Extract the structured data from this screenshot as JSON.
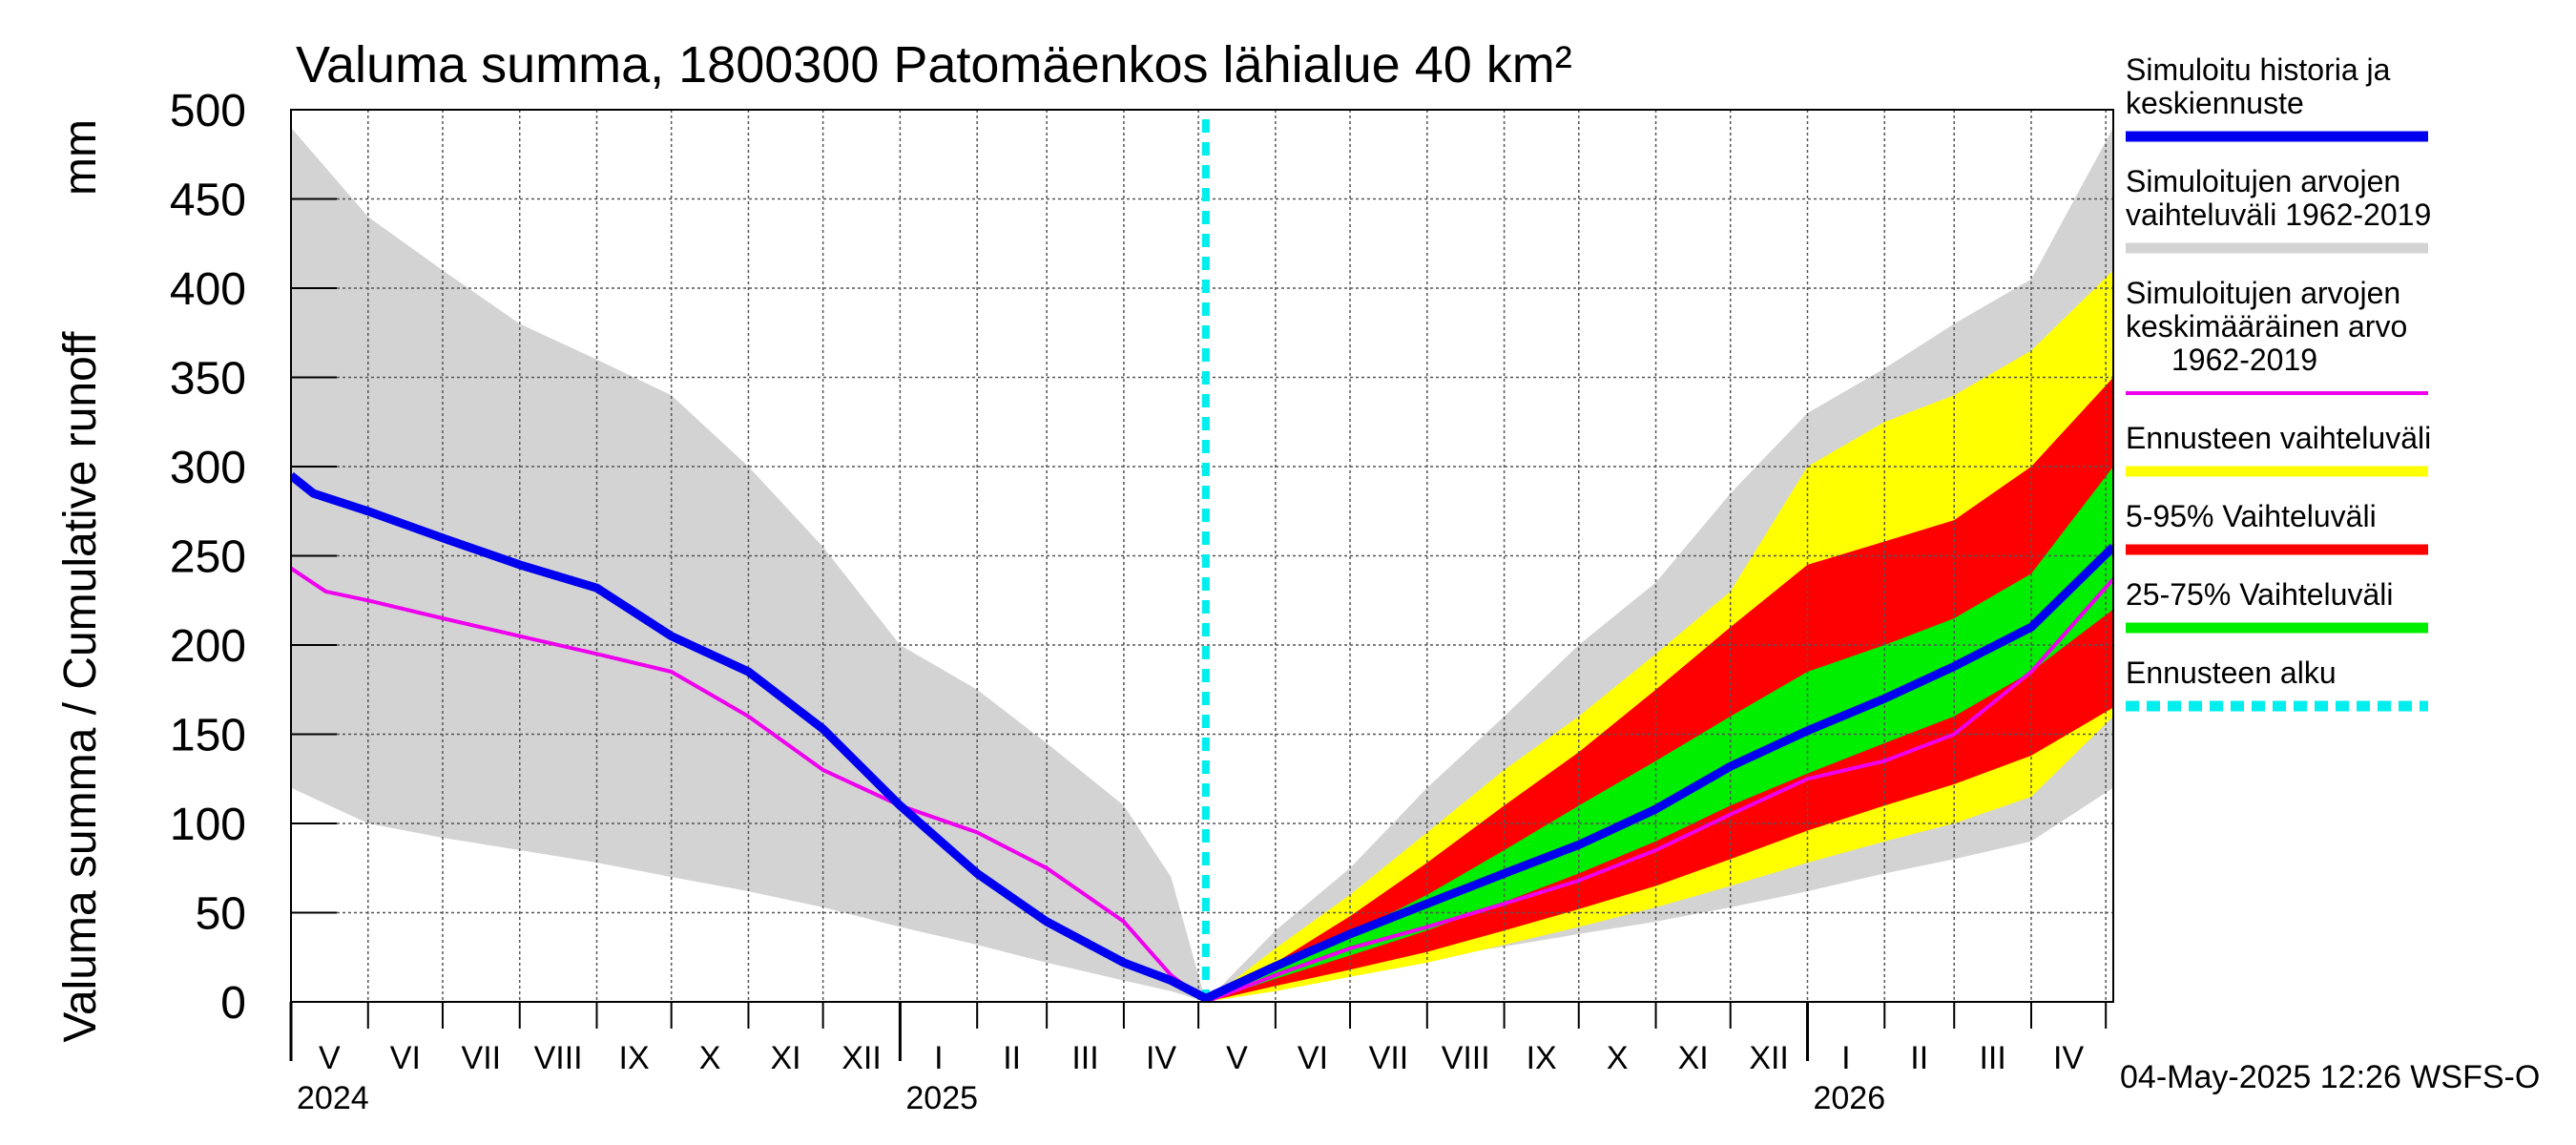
{
  "chart_data": {
    "type": "area",
    "title": "Valuma summa, 1800300 Patomäenkos lähialue 40 km²",
    "ylabel": "Valuma summa / Cumulative runoff",
    "yunit": "mm",
    "ylim": [
      0,
      500
    ],
    "yticks": [
      "0",
      "50",
      "100",
      "150",
      "200",
      "250",
      "300",
      "350",
      "400",
      "450",
      "500"
    ],
    "xlim": [
      "2024-05-01",
      "2026-05-04"
    ],
    "forecast_start": "2025-05-04",
    "grid": true,
    "legend_position": "right",
    "months": [
      "V",
      "VI",
      "VII",
      "VIII",
      "IX",
      "X",
      "XI",
      "XII",
      "I",
      "II",
      "III",
      "IV",
      "V",
      "VI",
      "VII",
      "VIII",
      "IX",
      "X",
      "XI",
      "XII",
      "I",
      "II",
      "III",
      "IV"
    ],
    "years": [
      "2024",
      "2025",
      "2026"
    ],
    "footer": "04-May-2025 12:26 WSFS-O",
    "colors": {
      "history": "#0000ee",
      "range": "#d3d3d3",
      "mean": "#ee00ee",
      "forecast_range": "#ffff00",
      "p5_95": "#ff0000",
      "p25_75": "#00ee00",
      "forecast_start": "#00eeee"
    },
    "legend": [
      {
        "label": "Simuloitu historia ja keskiennuste",
        "lines": [
          "Simuloitu historia ja",
          "keskiennuste"
        ],
        "color": "#0000ee",
        "style": "solid-thick"
      },
      {
        "label": "Simuloitujen arvojen vaihteluväli 1962-2019",
        "lines": [
          "Simuloitujen arvojen",
          "vaihteluväli 1962-2019"
        ],
        "color": "#d3d3d3",
        "style": "solid-thick"
      },
      {
        "label": "Simuloitujen arvojen keskimääräinen arvo 1962-2019",
        "lines": [
          "Simuloitujen arvojen",
          "keskimääräinen arvo",
          "1962-2019"
        ],
        "color": "#ee00ee",
        "style": "solid-thin"
      },
      {
        "label": "Ennusteen vaihteluväli",
        "lines": [
          "Ennusteen vaihteluväli"
        ],
        "color": "#ffff00",
        "style": "solid-thick"
      },
      {
        "label": "5-95% Vaihteluväli",
        "lines": [
          "5-95% Vaihteluväli"
        ],
        "color": "#ff0000",
        "style": "solid-thick"
      },
      {
        "label": "25-75% Vaihteluväli",
        "lines": [
          "25-75% Vaihteluväli"
        ],
        "color": "#00ee00",
        "style": "solid-thick"
      },
      {
        "label": "Ennusteen alku",
        "lines": [
          "Ennusteen alku"
        ],
        "color": "#00eeee",
        "style": "dashed"
      }
    ],
    "series": [
      {
        "name": "Simuloitujen arvojen vaihteluväli 1962-2019",
        "kind": "band",
        "x": [
          "2024-05-01",
          "2024-06-01",
          "2024-07-01",
          "2024-08-01",
          "2024-09-01",
          "2024-10-01",
          "2024-11-01",
          "2024-12-01",
          "2025-01-01",
          "2025-02-01",
          "2025-03-01",
          "2025-04-01",
          "2025-04-20",
          "2025-05-04",
          "2025-06-01",
          "2025-07-01",
          "2025-08-01",
          "2025-09-01",
          "2025-10-01",
          "2025-11-01",
          "2025-12-01",
          "2026-01-01",
          "2026-02-01",
          "2026-03-01",
          "2026-04-01",
          "2026-05-04"
        ],
        "lower": [
          120,
          100,
          92,
          85,
          78,
          70,
          62,
          53,
          42,
          32,
          22,
          12,
          6,
          0,
          10,
          18,
          24,
          31,
          38,
          45,
          53,
          62,
          72,
          80,
          90,
          120
        ],
        "upper": [
          490,
          440,
          410,
          380,
          360,
          340,
          300,
          255,
          200,
          175,
          145,
          110,
          70,
          0,
          40,
          75,
          120,
          160,
          200,
          235,
          285,
          330,
          355,
          380,
          405,
          490
        ]
      },
      {
        "name": "Ennusteen vaihteluväli",
        "kind": "band",
        "x": [
          "2025-05-04",
          "2025-06-01",
          "2025-07-01",
          "2025-08-01",
          "2025-09-01",
          "2025-10-01",
          "2025-11-01",
          "2025-12-01",
          "2026-01-01",
          "2026-02-01",
          "2026-03-01",
          "2026-04-01",
          "2026-05-04"
        ],
        "lower": [
          0,
          6,
          14,
          22,
          32,
          42,
          53,
          65,
          78,
          90,
          100,
          115,
          160
        ],
        "upper": [
          0,
          30,
          60,
          95,
          130,
          160,
          195,
          230,
          300,
          325,
          340,
          365,
          410
        ]
      },
      {
        "name": "5-95% Vaihteluväli",
        "kind": "band",
        "x": [
          "2025-05-04",
          "2025-06-01",
          "2025-07-01",
          "2025-08-01",
          "2025-09-01",
          "2025-10-01",
          "2025-11-01",
          "2025-12-01",
          "2026-01-01",
          "2026-02-01",
          "2026-03-01",
          "2026-04-01",
          "2026-05-04"
        ],
        "lower": [
          0,
          9,
          18,
          28,
          40,
          52,
          65,
          80,
          96,
          110,
          122,
          138,
          165
        ],
        "upper": [
          0,
          22,
          48,
          78,
          110,
          140,
          175,
          210,
          245,
          258,
          270,
          300,
          350
        ]
      },
      {
        "name": "25-75% Vaihteluväli",
        "kind": "band",
        "x": [
          "2025-05-04",
          "2025-06-01",
          "2025-07-01",
          "2025-08-01",
          "2025-09-01",
          "2025-10-01",
          "2025-11-01",
          "2025-12-01",
          "2026-01-01",
          "2026-02-01",
          "2026-03-01",
          "2026-04-01",
          "2026-05-04"
        ],
        "lower": [
          0,
          13,
          26,
          40,
          56,
          72,
          90,
          110,
          128,
          145,
          160,
          185,
          220
        ],
        "upper": [
          0,
          18,
          38,
          60,
          85,
          110,
          135,
          160,
          185,
          200,
          215,
          240,
          300
        ]
      },
      {
        "name": "Simuloitujen arvojen keskimääräinen arvo 1962-2019",
        "kind": "line",
        "x": [
          "2024-05-01",
          "2024-05-15",
          "2024-06-01",
          "2024-07-01",
          "2024-08-01",
          "2024-09-01",
          "2024-10-01",
          "2024-11-01",
          "2024-12-01",
          "2025-01-01",
          "2025-02-01",
          "2025-03-01",
          "2025-04-01",
          "2025-04-20",
          "2025-05-04",
          "2025-06-01",
          "2025-07-01",
          "2025-08-01",
          "2025-09-01",
          "2025-10-01",
          "2025-11-01",
          "2025-12-01",
          "2026-01-01",
          "2026-02-01",
          "2026-03-01",
          "2026-04-01",
          "2026-05-04"
        ],
        "y": [
          243,
          230,
          225,
          215,
          205,
          195,
          185,
          160,
          130,
          110,
          95,
          75,
          45,
          15,
          0,
          15,
          30,
          42,
          55,
          68,
          85,
          105,
          125,
          135,
          150,
          185,
          237
        ]
      },
      {
        "name": "Simuloitu historia ja keskiennuste",
        "kind": "line",
        "x": [
          "2024-05-01",
          "2024-05-10",
          "2024-06-01",
          "2024-07-01",
          "2024-08-01",
          "2024-09-01",
          "2024-10-01",
          "2024-11-01",
          "2024-12-01",
          "2025-01-01",
          "2025-02-01",
          "2025-03-01",
          "2025-04-01",
          "2025-04-20",
          "2025-05-04",
          "2025-06-01",
          "2025-07-01",
          "2025-08-01",
          "2025-09-01",
          "2025-10-01",
          "2025-11-01",
          "2025-12-01",
          "2026-01-01",
          "2026-02-01",
          "2026-03-01",
          "2026-04-01",
          "2026-05-04"
        ],
        "y": [
          295,
          285,
          275,
          260,
          245,
          232,
          205,
          185,
          153,
          110,
          72,
          45,
          22,
          12,
          2,
          20,
          38,
          55,
          72,
          88,
          108,
          132,
          152,
          170,
          188,
          210,
          255
        ]
      }
    ]
  }
}
